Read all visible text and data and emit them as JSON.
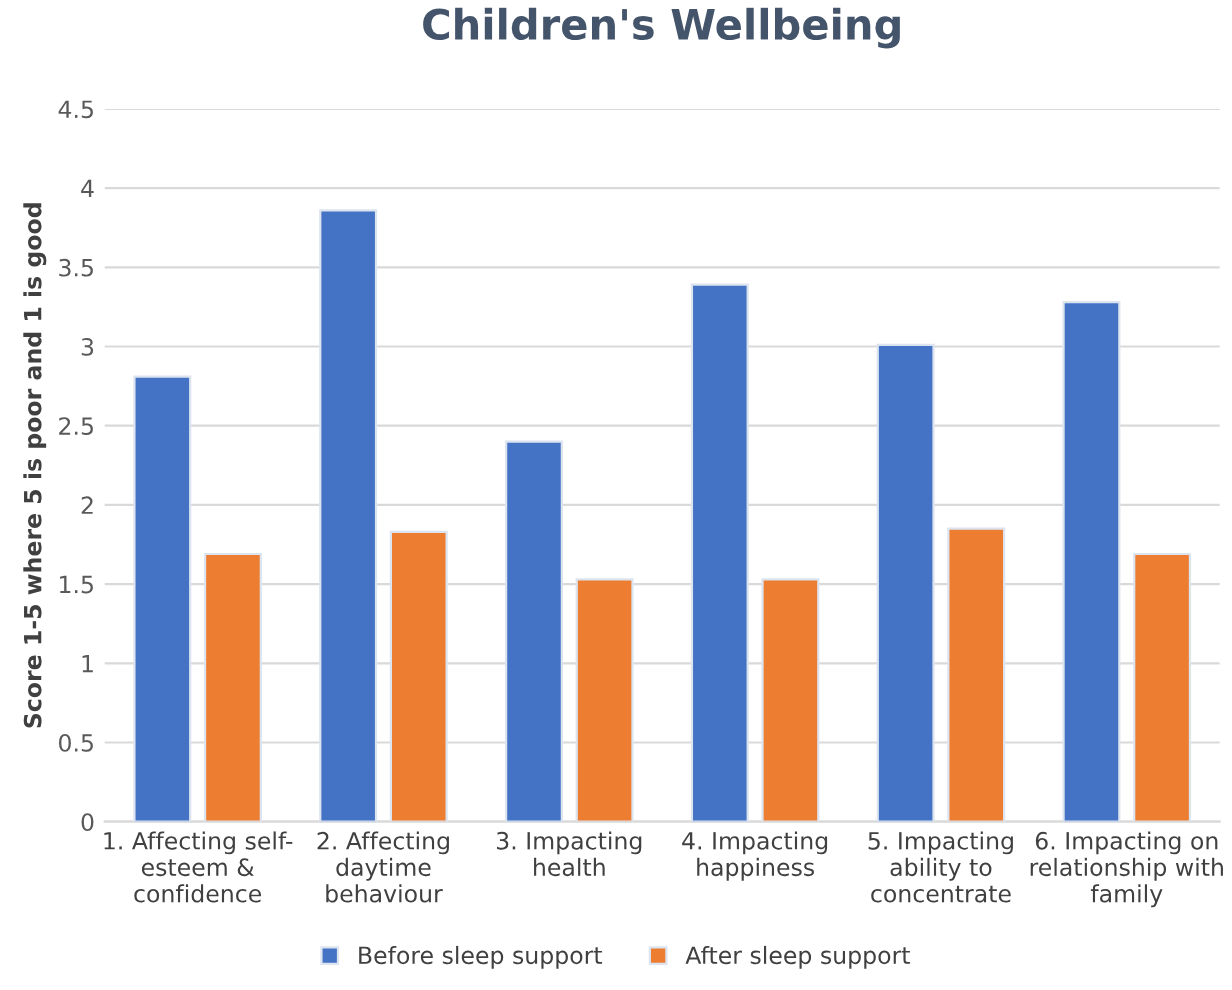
{
  "chart_data": {
    "type": "bar",
    "title": "Children's Wellbeing",
    "ylabel": "Score 1-5 where 5 is poor and 1 is good",
    "categories": [
      "1. Affecting self-\nesteem &\nconfidence",
      "2. Affecting\ndaytime\nbehaviour",
      "3. Impacting\nhealth",
      "4. Impacting\nhappiness",
      "5. Impacting\nability to\nconcentrate",
      "6. Impacting on\nrelationship with\nfamily"
    ],
    "series": [
      {
        "name": "Before sleep support",
        "color": "#4472c4",
        "values": [
          2.81,
          3.86,
          2.4,
          3.39,
          3.01,
          3.28
        ]
      },
      {
        "name": "After sleep support",
        "color": "#ed7d31",
        "values": [
          1.69,
          1.83,
          1.53,
          1.53,
          1.85,
          1.69
        ]
      }
    ],
    "ylim": [
      0,
      4.5
    ],
    "yticks": [
      0,
      0.5,
      1,
      1.5,
      2,
      2.5,
      3,
      3.5,
      4,
      4.5
    ],
    "grid": "y",
    "legend": "bottom"
  }
}
